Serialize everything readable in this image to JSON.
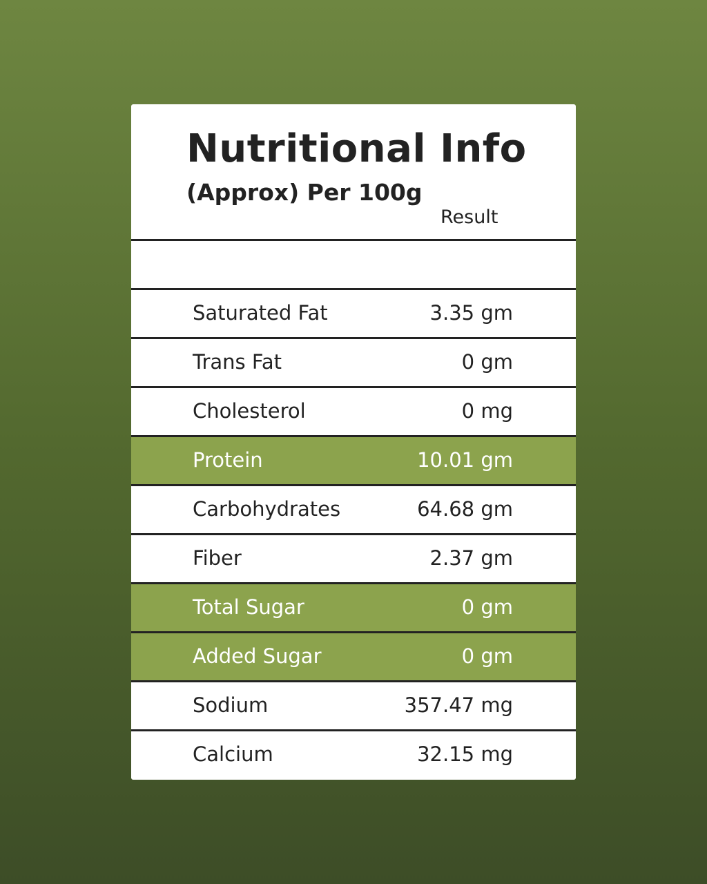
{
  "header": {
    "title": "Nutritional Info",
    "subtitle": "(Approx) Per 100g",
    "column": "Result"
  },
  "table": {
    "rows": [
      {
        "label": "Saturated Fat",
        "value": "3.35 gm",
        "fill": "#ffffff"
      },
      {
        "label": "Trans Fat",
        "value": "0 gm",
        "fill": "#ffffff"
      },
      {
        "label": "Cholesterol",
        "value": "0 mg",
        "fill": "#ffffff"
      },
      {
        "label": "Protein",
        "value": "10.01 gm",
        "fill": "#8ca34d"
      },
      {
        "label": "Carbohydrates",
        "value": "64.68 gm",
        "fill": "#ffffff"
      },
      {
        "label": "Fiber",
        "value": "2.37 gm",
        "fill": "#ffffff"
      },
      {
        "label": "Total Sugar",
        "value": "0 gm",
        "fill": "#8ca34d"
      },
      {
        "label": "Added Sugar",
        "value": "0 gm",
        "fill": "#8ca34d"
      },
      {
        "label": "Sodium",
        "value": "357.47 mg",
        "fill": "#ffffff"
      },
      {
        "label": "Calcium",
        "value": "32.15 mg",
        "fill": "#ffffff"
      }
    ]
  }
}
